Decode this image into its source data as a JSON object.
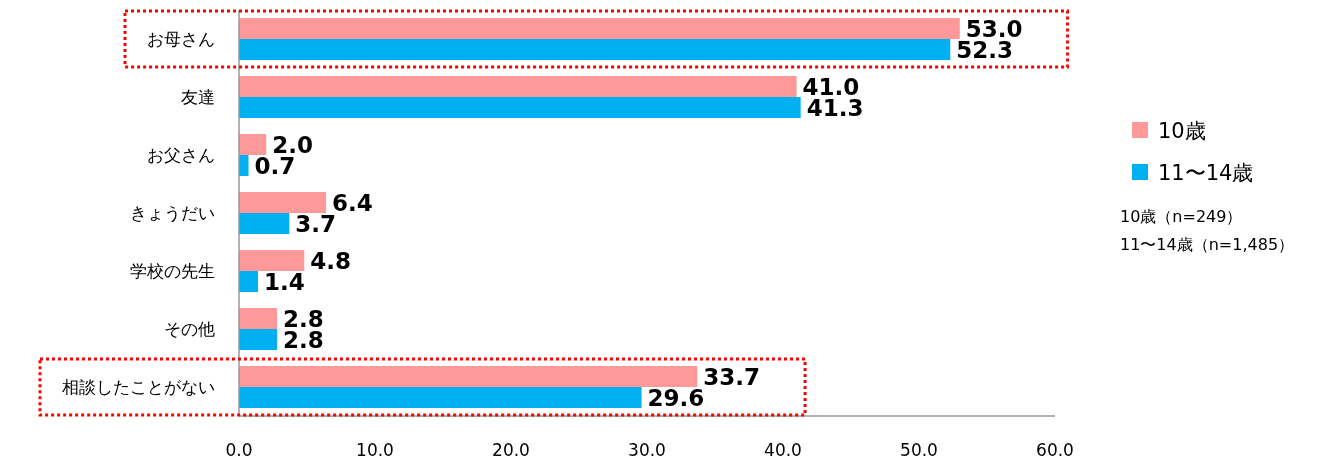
{
  "chart_data": {
    "type": "bar",
    "orientation": "horizontal",
    "categories": [
      "お母さん",
      "友達",
      "お父さん",
      "きょうだい",
      "学校の先生",
      "その他",
      "相談したことがない"
    ],
    "series": [
      {
        "name": "10歳",
        "color": "#ff9999",
        "values": [
          53.0,
          41.0,
          2.0,
          6.4,
          4.8,
          2.8,
          33.7
        ],
        "value_labels": [
          "53.0",
          "41.0",
          "2.0",
          "6.4",
          "4.8",
          "2.8",
          "33.7"
        ]
      },
      {
        "name": "11〜14歳",
        "color": "#00b0f0",
        "values": [
          52.3,
          41.3,
          0.7,
          3.7,
          1.4,
          2.8,
          29.6
        ],
        "value_labels": [
          "52.3",
          "41.3",
          "0.7",
          "3.7",
          "1.4",
          "2.8",
          "29.6"
        ]
      }
    ],
    "xlim": [
      0,
      60
    ],
    "xticks": [
      {
        "value": 0,
        "label": "0.0"
      },
      {
        "value": 10,
        "label": "10.0"
      },
      {
        "value": 20,
        "label": "20.0"
      },
      {
        "value": 30,
        "label": "30.0"
      },
      {
        "value": 40,
        "label": "40.0"
      },
      {
        "value": 50,
        "label": "50.0"
      },
      {
        "value": 60,
        "label": "60.0"
      }
    ],
    "grid": false,
    "legend": "right",
    "annotations": [
      "10歳（n=249）",
      "11〜14歳（n=1,485）"
    ]
  }
}
